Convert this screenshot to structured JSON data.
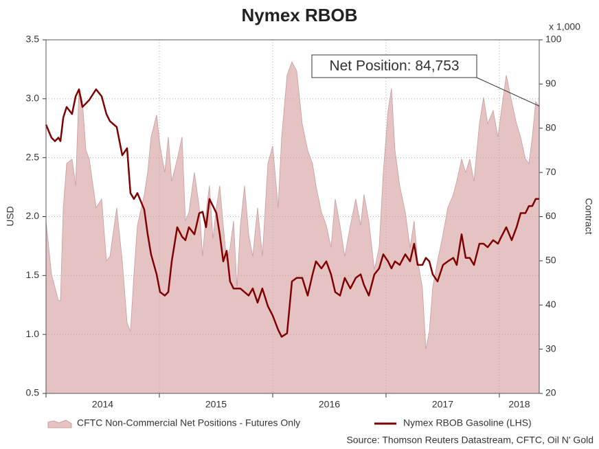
{
  "chart_data": {
    "type": "area-line",
    "title": "Nymex RBOB",
    "y_label": "USD",
    "y2_label": "Contract",
    "y2_unit": "x 1,000",
    "source": "Source: Thomson Reuters Datastream, CFTC, Oil N' Gold",
    "annotation": "Net Position: 84,753",
    "xlim": [
      2014,
      2018.352
    ],
    "xticks": [
      2014,
      2015,
      2016,
      2017,
      2018
    ],
    "ylim": [
      0.5,
      3.5
    ],
    "yticks": [
      0.5,
      {
        "value": 1,
        "label": "1.0"
      },
      1.5,
      {
        "value": 2,
        "label": "2.0"
      },
      2.5,
      {
        "value": 3,
        "label": "3.0"
      },
      3.5
    ],
    "y2lim": [
      20,
      100
    ],
    "y2ticks": [
      20,
      30,
      40,
      50,
      60,
      70,
      80,
      90,
      100
    ],
    "grid": true,
    "x": [
      2014.0,
      2014.048,
      2014.079,
      2014.109,
      2014.127,
      2014.152,
      2014.182,
      2014.23,
      2014.261,
      2014.291,
      2014.321,
      2014.352,
      2014.382,
      2014.442,
      2014.491,
      2014.533,
      2014.564,
      2014.624,
      2014.673,
      2014.715,
      2014.745,
      2014.776,
      2014.806,
      2014.867,
      2014.897,
      2014.927,
      2014.976,
      2015.006,
      2015.048,
      2015.079,
      2015.109,
      2015.158,
      2015.2,
      2015.23,
      2015.261,
      2015.309,
      2015.352,
      2015.382,
      2015.412,
      2015.442,
      2015.473,
      2015.503,
      2015.533,
      2015.564,
      2015.594,
      2015.624,
      2015.655,
      2015.685,
      2015.715,
      2015.752,
      2015.788,
      2015.824,
      2015.867,
      2015.909,
      2015.958,
      2016.0,
      2016.048,
      2016.079,
      2016.127,
      2016.17,
      2016.212,
      2016.261,
      2016.309,
      2016.352,
      2016.382,
      2016.43,
      2016.473,
      2016.515,
      2016.552,
      2016.594,
      2016.636,
      2016.685,
      2016.733,
      2016.776,
      2016.806,
      2016.848,
      2016.897,
      2016.939,
      2016.976,
      2017.018,
      2017.048,
      2017.079,
      2017.121,
      2017.17,
      2017.212,
      2017.248,
      2017.279,
      2017.321,
      2017.352,
      2017.382,
      2017.412,
      2017.455,
      2017.503,
      2017.545,
      2017.594,
      2017.624,
      2017.667,
      2017.703,
      2017.739,
      2017.776,
      2017.824,
      2017.861,
      2017.897,
      2017.945,
      2017.988,
      2018.018,
      2018.061,
      2018.109,
      2018.152,
      2018.188,
      2018.23,
      2018.261,
      2018.291,
      2018.321,
      2018.352
    ],
    "series": [
      {
        "name": "CFTC Non-Commercial Net Positions - Futures Only",
        "color": "#e6c3c3",
        "axis": "y2",
        "values": [
          59,
          47,
          44,
          41,
          41,
          62,
          72,
          73,
          67,
          89,
          86,
          75,
          73,
          62,
          64,
          50,
          51,
          62,
          50,
          36,
          34,
          47,
          58,
          65,
          70,
          78,
          83,
          76,
          70,
          78,
          68,
          73,
          78,
          59,
          61,
          70,
          62,
          51,
          61,
          67,
          55,
          62,
          67,
          58,
          50,
          53,
          59,
          44,
          58,
          67,
          56,
          51,
          62,
          51,
          72,
          76,
          62,
          78,
          92,
          95,
          93,
          81,
          75,
          72,
          67,
          61,
          58,
          53,
          64,
          58,
          51,
          58,
          64,
          58,
          65,
          59,
          48,
          53,
          70,
          84,
          89,
          75,
          67,
          61,
          53,
          59,
          50,
          44,
          30,
          34,
          44,
          50,
          56,
          62,
          65,
          68,
          73,
          70,
          73,
          68,
          81,
          87,
          81,
          84,
          78,
          84,
          92,
          86,
          81,
          78,
          73,
          72,
          78,
          86,
          85
        ]
      },
      {
        "name": "Nymex RBOB Gasoline (LHS)",
        "color": "#800000",
        "values": [
          2.78,
          2.67,
          2.64,
          2.67,
          2.64,
          2.84,
          2.93,
          2.87,
          3.02,
          3.08,
          2.93,
          2.96,
          2.99,
          3.08,
          3.02,
          2.87,
          2.81,
          2.76,
          2.52,
          2.58,
          2.2,
          2.15,
          2.2,
          2.06,
          1.85,
          1.68,
          1.51,
          1.36,
          1.33,
          1.36,
          1.62,
          1.91,
          1.83,
          1.8,
          1.91,
          1.85,
          2.03,
          2.04,
          1.91,
          2.15,
          2.09,
          2.03,
          1.85,
          1.62,
          1.71,
          1.45,
          1.39,
          1.39,
          1.39,
          1.36,
          1.33,
          1.39,
          1.27,
          1.39,
          1.24,
          1.16,
          1.04,
          0.98,
          1.01,
          1.45,
          1.48,
          1.48,
          1.33,
          1.51,
          1.62,
          1.56,
          1.62,
          1.51,
          1.36,
          1.33,
          1.48,
          1.39,
          1.48,
          1.51,
          1.42,
          1.33,
          1.51,
          1.56,
          1.68,
          1.62,
          1.56,
          1.62,
          1.59,
          1.68,
          1.62,
          1.77,
          1.59,
          1.59,
          1.65,
          1.62,
          1.51,
          1.45,
          1.59,
          1.62,
          1.65,
          1.59,
          1.85,
          1.65,
          1.65,
          1.59,
          1.77,
          1.77,
          1.74,
          1.8,
          1.77,
          1.83,
          1.91,
          1.8,
          1.91,
          2.03,
          2.03,
          2.09,
          2.09,
          2.15,
          2.15
        ]
      }
    ]
  }
}
